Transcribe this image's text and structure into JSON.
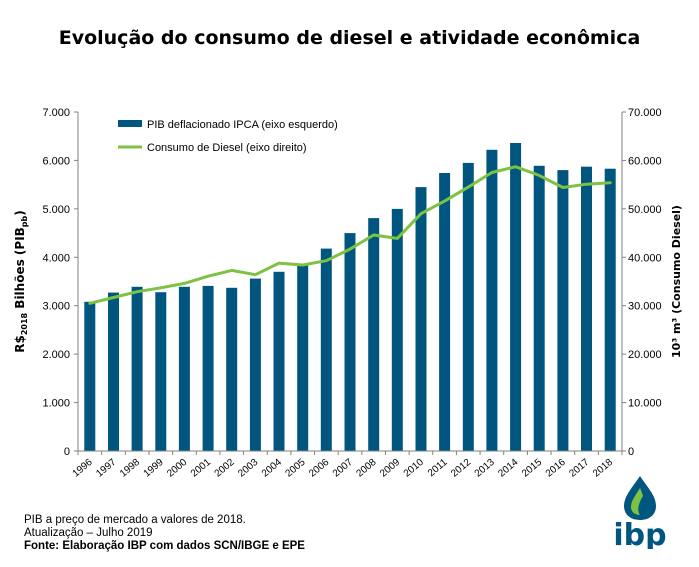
{
  "chart_data": {
    "type": "bar+line",
    "title": "Evolução do consumo de diesel e atividade econômica",
    "categories": [
      "1996",
      "1997",
      "1998",
      "1999",
      "2000",
      "2001",
      "2002",
      "2003",
      "2004",
      "2005",
      "2006",
      "2007",
      "2008",
      "2009",
      "2010",
      "2011",
      "2012",
      "2013",
      "2014",
      "2015",
      "2016",
      "2017",
      "2018"
    ],
    "series": [
      {
        "name": "PIB deflacionado IPCA (eixo esquerdo)",
        "type": "bar",
        "axis": "left",
        "color": "#00567e",
        "values": [
          3080,
          3270,
          3390,
          3280,
          3390,
          3410,
          3370,
          3560,
          3700,
          3840,
          4180,
          4500,
          4810,
          5000,
          5450,
          5740,
          5950,
          6220,
          6360,
          5890,
          5800,
          5870,
          5830
        ]
      },
      {
        "name": "Consumo de Diesel (eixo direito)",
        "type": "line",
        "axis": "right",
        "color": "#7dc242",
        "values": [
          30500,
          31700,
          32900,
          33700,
          34600,
          36100,
          37300,
          36400,
          38800,
          38400,
          39300,
          41700,
          44600,
          43900,
          49000,
          51600,
          54500,
          57500,
          58700,
          56900,
          54400,
          55100,
          55400
        ]
      }
    ],
    "y_left": {
      "label_main": "R$",
      "label_sub": "2018",
      "label_rest": " Bilhões (PIB",
      "label_sub2": "pb",
      "label_end": ")",
      "range": [
        0,
        7000
      ],
      "ticks": [
        "0",
        "1.000",
        "2.000",
        "3.000",
        "4.000",
        "5.000",
        "6.000",
        "7.000"
      ]
    },
    "y_right": {
      "label_main": "10³ m³ (Consumo Diesel)",
      "range": [
        0,
        70000
      ],
      "ticks": [
        "0",
        "10.000",
        "20.000",
        "30.000",
        "40.000",
        "50.000",
        "60.000",
        "70.000"
      ]
    },
    "legend_position": "top-left",
    "grid": false
  },
  "footnotes": {
    "line1": "PIB a preço de mercado a valores de 2018.",
    "line2": "Atualização – Julho 2019",
    "source": "Fonte: Elaboração IBP com dados SCN/IBGE e EPE"
  },
  "logo": {
    "text": "ibp",
    "colors": {
      "text": "#00567e",
      "drop_blue": "#00567e",
      "drop_green": "#7dc242"
    }
  }
}
